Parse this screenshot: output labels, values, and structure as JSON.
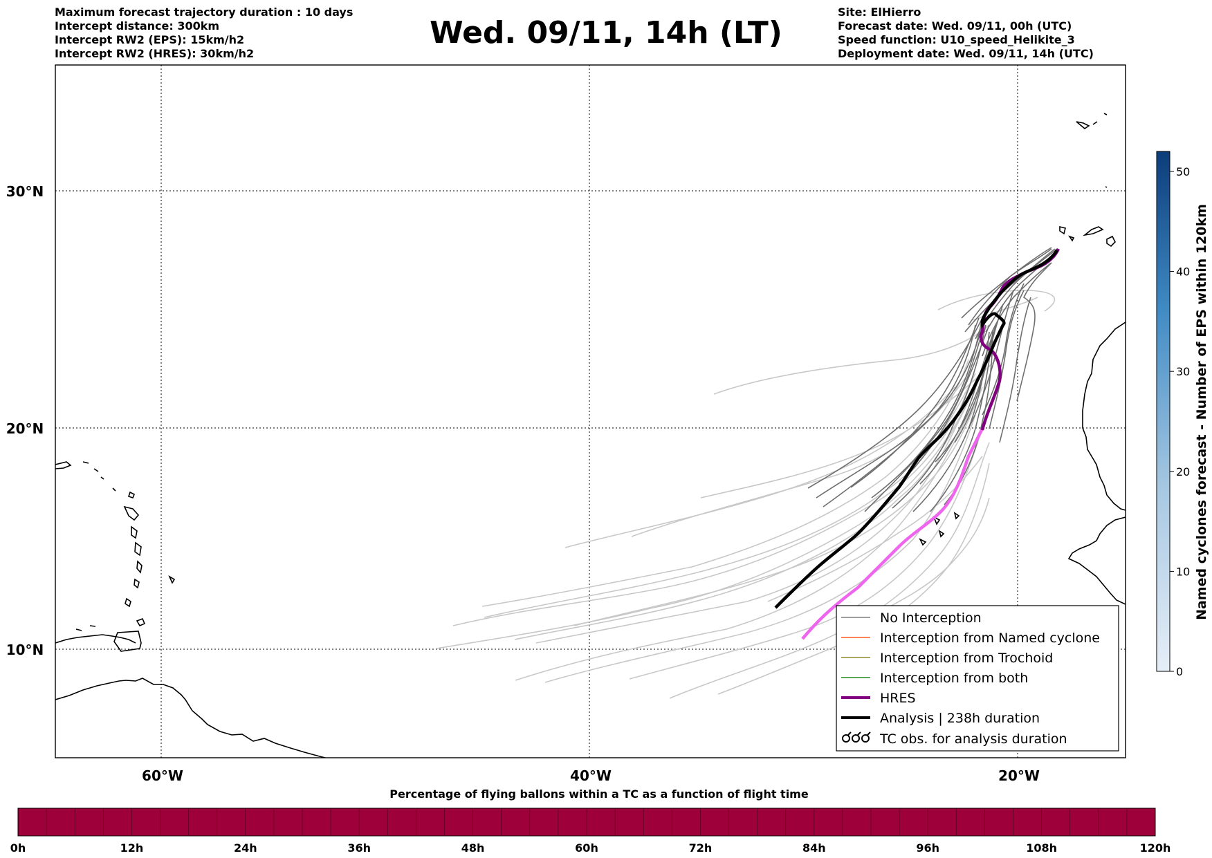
{
  "header": {
    "left_lines": [
      "Maximum forecast trajectory duration : 10 days",
      "Intercept distance: 300km",
      "Intercept RW2 (EPS):  15km/h2",
      "Intercept RW2 (HRES): 30km/h2"
    ],
    "title": "Wed. 09/11, 14h (LT)",
    "right_lines": [
      "Site: ElHierro",
      "Forecast date: Wed. 09/11, 00h (UTC)",
      "Speed function: U10_speed_Helikite_3",
      "Deployment date: Wed. 09/11, 14h (UTC)"
    ]
  },
  "map": {
    "lat_labels": [
      "30°N",
      "20°N",
      "10°N"
    ],
    "lon_labels": [
      "60°W",
      "40°W",
      "20°W"
    ],
    "legend": [
      {
        "label": "No Interception",
        "color": "#7f7f7f"
      },
      {
        "label": "Interception from Named cyclone",
        "color": "#ff5a1f"
      },
      {
        "label": "Interception from Trochoid",
        "color": "#8b8b2a"
      },
      {
        "label": "Interception from both",
        "color": "#228b22"
      },
      {
        "label": "HRES",
        "color": "#800080"
      },
      {
        "label": "Analysis | 238h duration",
        "color": "#000000"
      },
      {
        "label": "TC obs. for analysis duration",
        "color": "#000000"
      }
    ],
    "colors": {
      "hres": "#800080",
      "analysis": "#000000",
      "hres_tail": "#ee66ee",
      "eps_dark": "#6e6e6e",
      "eps_light": "#c8c8c8"
    }
  },
  "right_colorbar": {
    "label": "Named cyclones forecast - Number of EPS within 120km",
    "ticks": [
      "0",
      "10",
      "20",
      "30",
      "40",
      "50"
    ],
    "color_low": "#e6eef8",
    "color_high": "#0b3c7a"
  },
  "bottom_colorbar": {
    "title": "Percentage of flying ballons within a TC as a function of flight time",
    "ticks": [
      "0h",
      "12h",
      "24h",
      "36h",
      "48h",
      "60h",
      "72h",
      "84h",
      "96h",
      "108h",
      "120h"
    ],
    "color": "#9e003a"
  }
}
